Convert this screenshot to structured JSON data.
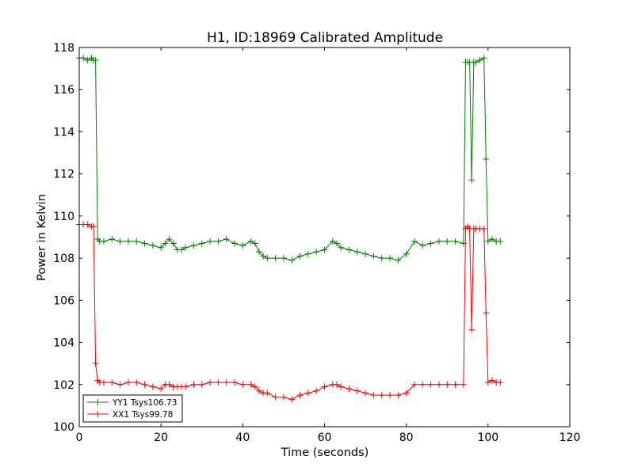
{
  "chart_data": {
    "type": "line",
    "title": "H1, ID:18969 Calibrated Amplitude",
    "xlabel": "Time (seconds)",
    "ylabel": "Power in Kelvin",
    "xlim": [
      0,
      120
    ],
    "ylim": [
      100,
      118
    ],
    "x_ticks": [
      "0",
      "20",
      "40",
      "60",
      "80",
      "100",
      "120"
    ],
    "y_ticks": [
      "100",
      "102",
      "104",
      "106",
      "108",
      "110",
      "112",
      "114",
      "116",
      "118"
    ],
    "grid": false,
    "legend_position": "lower-left",
    "series": [
      {
        "name": "YY1 Tsys106.73",
        "color": "#008000",
        "x": [
          0,
          1,
          2,
          3,
          3.5,
          4,
          4.5,
          5,
          6,
          8,
          10,
          12,
          14,
          16,
          18,
          20,
          21,
          22,
          23,
          24,
          25,
          26,
          28,
          30,
          32,
          34,
          36,
          38,
          40,
          42,
          43,
          44,
          45,
          46,
          48,
          50,
          52,
          54,
          56,
          58,
          60,
          62,
          63,
          64,
          66,
          68,
          70,
          72,
          74,
          76,
          78,
          80,
          82,
          84,
          86,
          88,
          90,
          92,
          94,
          94.5,
          95,
          95.5,
          96,
          96.5,
          97,
          98,
          99,
          99.5,
          100,
          101,
          102,
          103
        ],
        "y": [
          117.5,
          117.5,
          117.4,
          117.5,
          117.4,
          117.4,
          108.9,
          108.8,
          108.8,
          108.9,
          108.8,
          108.8,
          108.8,
          108.7,
          108.6,
          108.5,
          108.7,
          108.9,
          108.7,
          108.4,
          108.4,
          108.5,
          108.6,
          108.7,
          108.8,
          108.8,
          108.9,
          108.7,
          108.6,
          108.8,
          108.7,
          108.3,
          108.1,
          108.0,
          108.0,
          108.0,
          107.9,
          108.1,
          108.2,
          108.3,
          108.4,
          108.8,
          108.7,
          108.5,
          108.4,
          108.3,
          108.2,
          108.1,
          108.0,
          108.0,
          107.9,
          108.2,
          108.8,
          108.6,
          108.7,
          108.8,
          108.8,
          108.8,
          108.7,
          117.3,
          117.3,
          117.3,
          111.7,
          117.3,
          117.3,
          117.4,
          117.5,
          112.7,
          108.8,
          108.9,
          108.8,
          108.8
        ]
      },
      {
        "name": "XX1 Tsys99.78",
        "color": "#ff0000",
        "x": [
          0,
          1,
          2,
          3,
          3.5,
          4,
          4.5,
          5,
          6,
          8,
          10,
          12,
          14,
          16,
          18,
          20,
          21,
          22,
          23,
          24,
          25,
          26,
          28,
          30,
          32,
          34,
          36,
          38,
          40,
          42,
          43,
          44,
          45,
          46,
          48,
          50,
          52,
          54,
          56,
          58,
          60,
          62,
          63,
          64,
          66,
          68,
          70,
          72,
          74,
          76,
          78,
          80,
          82,
          84,
          86,
          88,
          90,
          92,
          94,
          94.5,
          95,
          95.5,
          96,
          96.5,
          97,
          98,
          99,
          99.5,
          100,
          101,
          102,
          103
        ],
        "y": [
          109.6,
          109.6,
          109.6,
          109.5,
          109.5,
          103.0,
          102.2,
          102.1,
          102.1,
          102.1,
          102.0,
          102.1,
          102.1,
          102.0,
          101.9,
          101.8,
          102.0,
          102.0,
          101.9,
          101.9,
          101.9,
          101.9,
          102.0,
          102.0,
          102.1,
          102.1,
          102.1,
          102.1,
          102.0,
          102.0,
          101.9,
          101.7,
          101.6,
          101.6,
          101.4,
          101.4,
          101.3,
          101.5,
          101.6,
          101.7,
          101.9,
          102.0,
          102.0,
          101.9,
          101.8,
          101.7,
          101.6,
          101.5,
          101.5,
          101.5,
          101.5,
          101.6,
          102.0,
          102.0,
          102.0,
          102.0,
          102.0,
          102.0,
          102.0,
          109.4,
          109.5,
          109.4,
          104.6,
          109.4,
          109.4,
          109.4,
          109.4,
          105.4,
          102.1,
          102.2,
          102.1,
          102.1
        ]
      }
    ]
  }
}
